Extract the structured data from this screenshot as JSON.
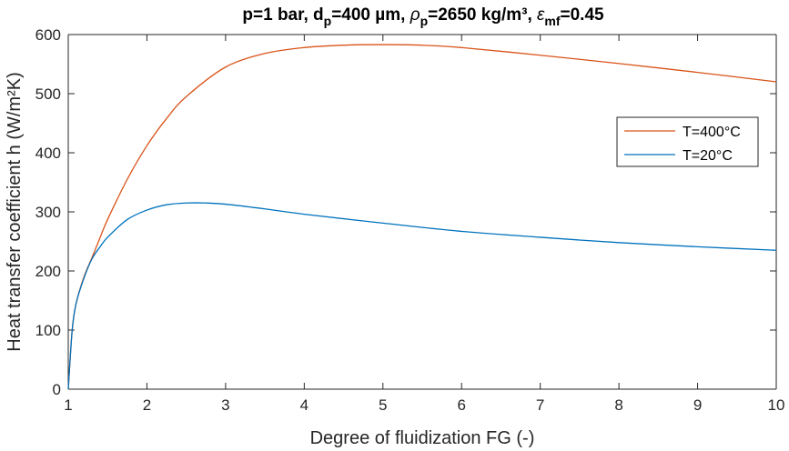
{
  "chart_data": {
    "type": "line",
    "title": {
      "p": "p=1 bar, d",
      "p_sub": "p",
      "dp": "=400 µm, ",
      "rho": "ρ",
      "rho_sub": "p",
      "rho_val": "=2650 kg/m³, ",
      "eps": "ε",
      "eps_sub": "mf",
      "eps_val": "=0.45"
    },
    "xlabel": "Degree of fluidization FG (-)",
    "ylabel": "Heat transfer coefficient h (W/m²K)",
    "xlim": [
      1,
      10
    ],
    "ylim": [
      0,
      600
    ],
    "xticks": [
      1,
      2,
      3,
      4,
      5,
      6,
      7,
      8,
      9,
      10
    ],
    "yticks": [
      0,
      100,
      200,
      300,
      400,
      500,
      600
    ],
    "grid": false,
    "legend_position": "top-right",
    "series": [
      {
        "name": "T=400°C",
        "color": "#D95319",
        "x": [
          1,
          1.05,
          1.1,
          1.2,
          1.3,
          1.4,
          1.5,
          1.75,
          2,
          2.25,
          2.5,
          3,
          3.5,
          4,
          4.5,
          5,
          5.5,
          6,
          7,
          8,
          9,
          10
        ],
        "values": [
          0,
          100,
          145,
          190,
          222,
          255,
          287,
          355,
          412,
          458,
          495,
          545,
          568,
          578,
          582,
          583,
          582,
          578,
          565,
          551,
          536,
          520
        ]
      },
      {
        "name": "T=20°C",
        "color": "#0072BD",
        "x": [
          1,
          1.05,
          1.1,
          1.2,
          1.3,
          1.4,
          1.5,
          1.75,
          2,
          2.25,
          2.5,
          2.75,
          3,
          3.5,
          4,
          5,
          6,
          7,
          8,
          9,
          10
        ],
        "values": [
          0,
          100,
          145,
          188,
          220,
          240,
          257,
          287,
          303,
          312,
          315,
          315,
          313,
          305,
          296,
          281,
          267,
          257,
          248,
          241,
          235
        ]
      }
    ]
  }
}
